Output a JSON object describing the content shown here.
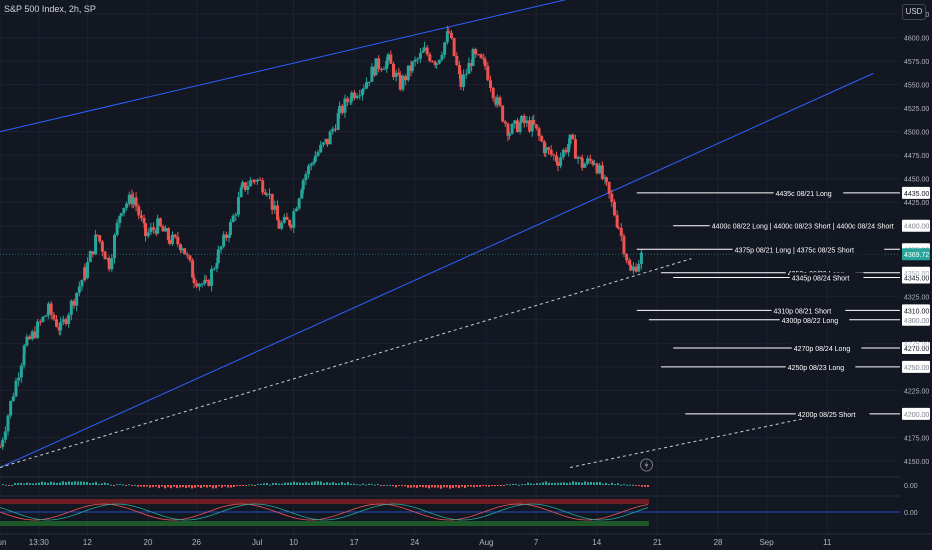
{
  "header": {
    "title": "S&P 500 Index, 2h, SP",
    "currency": "USD"
  },
  "colors": {
    "background": "#131722",
    "up": "#26a69a",
    "down": "#ef5350",
    "channel": "#2962ff",
    "levels": "#ffffff",
    "last_price_bg": "#26a69a"
  },
  "icons": {
    "flash": "lightning-icon"
  },
  "chart_data": {
    "type": "candlestick",
    "title": "S&P 500 Index, 2h, SP",
    "ylim": [
      4135,
      4640
    ],
    "y_ticks": [
      4150,
      4175,
      4200,
      4225,
      4250,
      4275,
      4300,
      4325,
      4350,
      4375,
      4400,
      4425,
      4450,
      4475,
      4500,
      4525,
      4550,
      4575,
      4600,
      4625
    ],
    "x_ticks": [
      {
        "label": "Jun",
        "t": 0
      },
      {
        "label": "13:30",
        "t": 3.2
      },
      {
        "label": "12",
        "t": 7.2
      },
      {
        "label": "20",
        "t": 12.2
      },
      {
        "label": "26",
        "t": 16.2
      },
      {
        "label": "Jul",
        "t": 21.2
      },
      {
        "label": "10",
        "t": 24.2
      },
      {
        "label": "17",
        "t": 29.2
      },
      {
        "label": "24",
        "t": 34.2
      },
      {
        "label": "Aug",
        "t": 40.1
      },
      {
        "label": "7",
        "t": 44.2
      },
      {
        "label": "14",
        "t": 49.2
      },
      {
        "label": "21",
        "t": 54.2
      },
      {
        "label": "28",
        "t": 59.2
      },
      {
        "label": "Sep",
        "t": 63.2
      },
      {
        "label": "11",
        "t": 68.2
      }
    ],
    "x_range": [
      0,
      74.2
    ],
    "last_price": 4369.72,
    "last_price_label": "4369.72",
    "price_series": [
      [
        0,
        4165
      ],
      [
        2,
        4270
      ],
      [
        4,
        4310
      ],
      [
        5,
        4290
      ],
      [
        7,
        4350
      ],
      [
        8,
        4390
      ],
      [
        9,
        4360
      ],
      [
        10,
        4420
      ],
      [
        11,
        4430
      ],
      [
        12,
        4390
      ],
      [
        13,
        4400
      ],
      [
        14,
        4385
      ],
      [
        15,
        4380
      ],
      [
        16,
        4345
      ],
      [
        17,
        4335
      ],
      [
        18,
        4370
      ],
      [
        19,
        4400
      ],
      [
        20,
        4440
      ],
      [
        21,
        4450
      ],
      [
        22,
        4440
      ],
      [
        23,
        4400
      ],
      [
        24,
        4405
      ],
      [
        25,
        4450
      ],
      [
        26,
        4475
      ],
      [
        27,
        4490
      ],
      [
        28,
        4520
      ],
      [
        29,
        4540
      ],
      [
        30,
        4550
      ],
      [
        31,
        4570
      ],
      [
        32,
        4575
      ],
      [
        33,
        4550
      ],
      [
        34,
        4570
      ],
      [
        35,
        4585
      ],
      [
        36,
        4575
      ],
      [
        37,
        4605
      ],
      [
        38,
        4550
      ],
      [
        39,
        4580
      ],
      [
        40,
        4570
      ],
      [
        41,
        4530
      ],
      [
        42,
        4500
      ],
      [
        43,
        4510
      ],
      [
        44,
        4505
      ],
      [
        45,
        4480
      ],
      [
        46,
        4470
      ],
      [
        47,
        4490
      ],
      [
        48,
        4465
      ],
      [
        49,
        4470
      ],
      [
        50,
        4440
      ],
      [
        51,
        4400
      ],
      [
        52,
        4350
      ],
      [
        53,
        4370
      ]
    ],
    "channel_lines": [
      {
        "name": "upper",
        "t1": 0,
        "y1": 4500,
        "t2": 52.5,
        "y2": 4658
      },
      {
        "name": "lower",
        "t1": 0,
        "y1": 4143,
        "t2": 72,
        "y2": 4562
      }
    ],
    "trend_lines": [
      {
        "t1": 0,
        "y1": 4143,
        "t2": 57,
        "y2": 4365
      },
      {
        "t1": 47,
        "y1": 4143,
        "t2": 70,
        "y2": 4205
      }
    ],
    "level_annotations": [
      {
        "label": "4435c 08/21 Long",
        "price": 4435,
        "price_label": "4435.00",
        "line_from_t": 52.5
      },
      {
        "label": "4400c 08/22 Long | 4400c 08/23 Short | 4400c 08/24 Short",
        "price": 4400,
        "price_label": "4400.00",
        "line_from_t": 55.5
      },
      {
        "label": "4375p 08/21 Long | 4375c 08/25 Short",
        "price": 4375,
        "price_label": "4375.00",
        "line_from_t": 52.5
      },
      {
        "label": "4350p 08/23 Long",
        "price": 4350,
        "price_label": "4350.00",
        "line_from_t": 54.5
      },
      {
        "label": "4345p 08/24 Short",
        "price": 4345,
        "price_label": "4345.00",
        "line_from_t": 55.5
      },
      {
        "label": "4310p 08/21 Short",
        "price": 4310,
        "price_label": "4310.00",
        "line_from_t": 52.5
      },
      {
        "label": "4300p 08/22 Long",
        "price": 4300,
        "price_label": "4300.00",
        "line_from_t": 53.5
      },
      {
        "label": "4270p 08/24 Long",
        "price": 4270,
        "price_label": "4270.00",
        "line_from_t": 55.5
      },
      {
        "label": "4250p 08/23 Long",
        "price": 4250,
        "price_label": "4250.00",
        "line_from_t": 54.5
      },
      {
        "label": "4200p 08/25 Short",
        "price": 4200,
        "price_label": "4200.00",
        "line_from_t": 56.5
      }
    ],
    "indicator_panes": [
      {
        "name": "pane1",
        "value_label": "0.00"
      },
      {
        "name": "pane2",
        "value_label": "0.00"
      }
    ]
  }
}
